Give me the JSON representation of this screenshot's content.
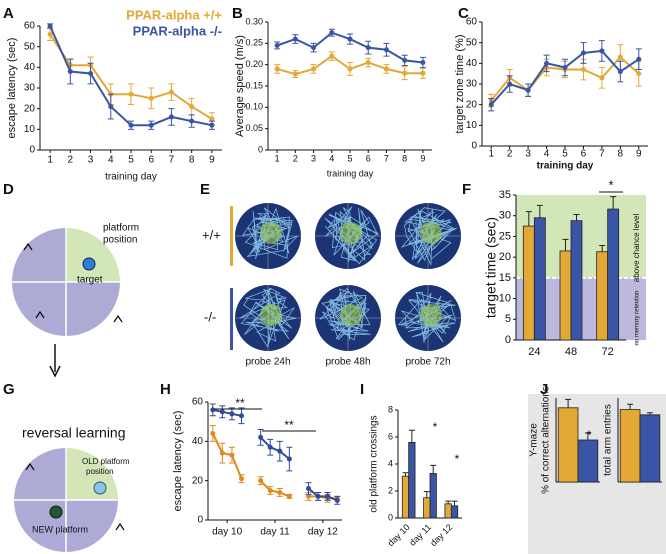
{
  "chart_data": [
    {
      "type": "line",
      "panel": "A",
      "ylabel": "escape latency (sec)",
      "xlabel": "training day",
      "x": [
        1,
        2,
        3,
        4,
        5,
        6,
        7,
        8,
        9
      ],
      "xlim": [
        0.5,
        9.5
      ],
      "xticks": [
        1,
        2,
        3,
        4,
        5,
        6,
        7,
        8,
        9
      ],
      "ylim": [
        0,
        60
      ],
      "yticks": [
        0,
        10,
        20,
        30,
        40,
        50,
        60
      ],
      "legend": "upper right",
      "series": [
        {
          "name": "PPAR-alpha +/+",
          "color": "#e3a835",
          "values": [
            56,
            41,
            41,
            27,
            27,
            25,
            28,
            21,
            15
          ],
          "errors": [
            3,
            3,
            4,
            5,
            5,
            5,
            4,
            4,
            3
          ]
        },
        {
          "name": "PPAR-alpha -/-",
          "color": "#3a55a5",
          "values": [
            60,
            38,
            37,
            21,
            12,
            12,
            16,
            14,
            12
          ],
          "errors": [
            1,
            6,
            5,
            6,
            2,
            2,
            4,
            3,
            2
          ]
        }
      ]
    },
    {
      "type": "line",
      "panel": "B",
      "ylabel": "Average speed (m/s)",
      "xlabel": "training day",
      "x": [
        1,
        2,
        3,
        4,
        5,
        6,
        7,
        8,
        9
      ],
      "xlim": [
        0.5,
        9.5
      ],
      "xticks": [
        1,
        2,
        3,
        4,
        5,
        6,
        7,
        8,
        9
      ],
      "ylim": [
        0,
        0.3
      ],
      "yticks": [
        0,
        0.05,
        {
          "value": 0.1,
          "label": "0.10"
        },
        0.15,
        {
          "value": 0.2,
          "label": "0.20"
        },
        0.25,
        {
          "value": 0.3,
          "label": "0.30"
        }
      ],
      "series": [
        {
          "color": "#e3a835",
          "values": [
            0.19,
            0.178,
            0.19,
            0.22,
            0.19,
            0.205,
            0.19,
            0.18,
            0.18
          ],
          "errors": [
            0.01,
            0.008,
            0.01,
            0.01,
            0.015,
            0.01,
            0.01,
            0.015,
            0.012
          ]
        },
        {
          "color": "#3a55a5",
          "values": [
            0.245,
            0.26,
            0.24,
            0.275,
            0.26,
            0.24,
            0.235,
            0.21,
            0.205
          ],
          "errors": [
            0.008,
            0.01,
            0.01,
            0.008,
            0.012,
            0.015,
            0.015,
            0.012,
            0.012
          ]
        }
      ]
    },
    {
      "type": "line",
      "panel": "C",
      "ylabel": "target zone time (%)",
      "xlabel": "training day",
      "x": [
        1,
        2,
        3,
        4,
        5,
        6,
        7,
        8,
        9
      ],
      "xlim": [
        0.5,
        9.5
      ],
      "xticks": [
        1,
        2,
        3,
        4,
        5,
        6,
        7,
        8,
        9
      ],
      "ylim": [
        0,
        60
      ],
      "yticks": [
        0,
        10,
        20,
        30,
        40,
        50,
        60
      ],
      "series": [
        {
          "color": "#e3a835",
          "values": [
            22,
            33,
            27,
            38,
            37,
            37,
            33,
            43,
            35
          ],
          "errors": [
            3,
            4,
            3,
            4,
            4,
            5,
            5,
            6,
            6
          ]
        },
        {
          "color": "#3a55a5",
          "values": [
            20,
            30,
            27,
            40,
            38,
            45,
            46,
            36,
            42
          ],
          "errors": [
            3,
            4,
            3,
            4,
            4,
            5,
            5,
            5,
            5
          ]
        }
      ]
    },
    {
      "type": "bar",
      "panel": "F",
      "ylabel": "target time (sec)",
      "categories": [
        "24",
        "48",
        "72"
      ],
      "ylim": [
        0,
        35
      ],
      "yticks": [
        0,
        5,
        10,
        15,
        20,
        25,
        30,
        35
      ],
      "chance_level": 15,
      "band_colors": [
        "#d3e6b8",
        "#bcb8de"
      ],
      "annotations": [
        "above chance level",
        "no memory retention",
        "*"
      ],
      "series": [
        {
          "color": "#e3a835",
          "values": [
            27.5,
            21.5,
            21.3
          ],
          "errors": [
            3.5,
            2.8,
            1.5
          ]
        },
        {
          "color": "#3a55a5",
          "values": [
            29.5,
            28.8,
            31.6
          ],
          "errors": [
            3,
            1.5,
            3
          ]
        }
      ]
    },
    {
      "type": "line",
      "panel": "H",
      "ylabel": "escape latency (sec)",
      "x": [
        1,
        2,
        3,
        4,
        5,
        6,
        7,
        8,
        9,
        10,
        11,
        12,
        13,
        14
      ],
      "xlim": [
        0.5,
        14.5
      ],
      "xticks": [
        {
          "value": 2.5,
          "label": "day 10"
        },
        {
          "value": 7.5,
          "label": "day 11"
        },
        {
          "value": 12.5,
          "label": "day 12"
        }
      ],
      "ylim": [
        0,
        60
      ],
      "yticks": [
        0,
        20,
        40,
        60
      ],
      "annotations": [
        "**",
        "**"
      ],
      "series": [
        {
          "color": "#e08a1e",
          "values": [
            44,
            34,
            33,
            21,
            null,
            20,
            15,
            14,
            12,
            null,
            12,
            12,
            11,
            11
          ],
          "errors": [
            4,
            5,
            4,
            2,
            null,
            2,
            2,
            2,
            1,
            null,
            2,
            2,
            2,
            1
          ]
        },
        {
          "color": "#2f4a9a",
          "values": [
            56,
            55,
            54,
            53,
            null,
            42,
            37,
            35,
            31,
            null,
            16,
            12,
            12,
            10
          ],
          "errors": [
            3,
            3,
            3,
            4,
            null,
            4,
            4,
            5,
            6,
            null,
            3,
            2,
            2,
            2
          ]
        }
      ]
    },
    {
      "type": "bar",
      "panel": "I",
      "ylabel": "old platform crossings",
      "categories": [
        "day 10",
        "day 11",
        "day 12"
      ],
      "ylim": [
        0,
        8
      ],
      "yticks": [
        0,
        2,
        4,
        6,
        8
      ],
      "annotations": [
        "*",
        "*"
      ],
      "series": [
        {
          "color": "#e3a835",
          "values": [
            3.1,
            1.5,
            1.05
          ],
          "errors": [
            0.25,
            0.45,
            0.2
          ]
        },
        {
          "color": "#3a55a5",
          "values": [
            5.6,
            3.3,
            0.9
          ],
          "errors": [
            0.9,
            0.6,
            0.35
          ]
        }
      ]
    },
    {
      "type": "bar",
      "panel": "J",
      "ylabel": [
        "Y-maze",
        "% of correct alternations"
      ],
      "ylim": [
        40,
        70
      ],
      "annotations": [
        "*"
      ],
      "series": [
        {
          "color": "#e3a835",
          "values": [
            66.5
          ],
          "errors": [
            3
          ]
        },
        {
          "color": "#3a55a5",
          "values": [
            55
          ],
          "errors": [
            2.5
          ]
        }
      ]
    },
    {
      "type": "bar",
      "ylabel": "total arm entries",
      "ylim": [
        0,
        40
      ],
      "series": [
        {
          "color": "#e3a835",
          "values": [
            34.5
          ],
          "errors": [
            2.5
          ]
        },
        {
          "color": "#3a55a5",
          "values": [
            32
          ],
          "errors": [
            1
          ]
        }
      ]
    }
  ],
  "diagrams": [
    {
      "panel": "D",
      "platform_label": [
        "platform",
        "position"
      ],
      "target_label": "target"
    },
    {
      "panel": "E",
      "genotypes": [
        "+/+",
        "-/-"
      ],
      "probes": [
        "probe 24h",
        "probe 48h",
        "probe 72h"
      ]
    },
    {
      "panel": "G",
      "title": "reversal learning",
      "old_label": [
        "OLD platform",
        "position"
      ],
      "new_label": "NEW platform"
    }
  ]
}
